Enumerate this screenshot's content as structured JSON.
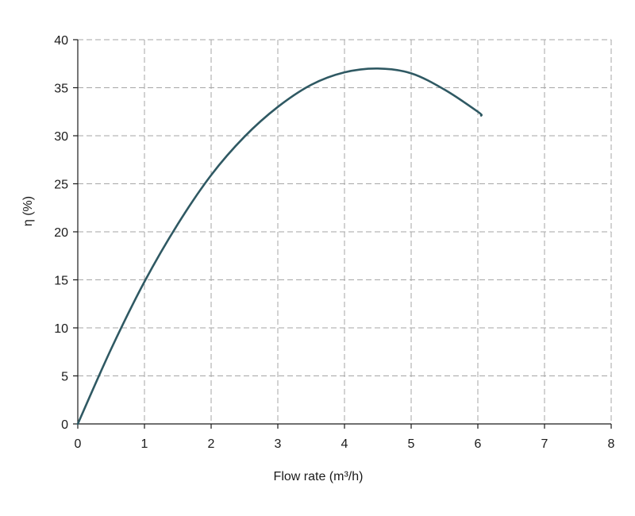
{
  "chart_data": {
    "type": "line",
    "title": "",
    "xlabel": "Flow rate (m³/h)",
    "ylabel": "η (%)",
    "xlim": [
      0,
      8
    ],
    "ylim": [
      0,
      40
    ],
    "x_ticks": [
      0,
      1,
      2,
      3,
      4,
      5,
      6,
      7,
      8
    ],
    "y_ticks": [
      0,
      5,
      10,
      15,
      20,
      25,
      30,
      35,
      40
    ],
    "x_tick_labels": [
      "0",
      "1",
      "2",
      "3",
      "4",
      "5",
      "6",
      "7",
      "8"
    ],
    "y_tick_labels": [
      "0",
      "5",
      "10",
      "15",
      "20",
      "25",
      "30",
      "35",
      "40"
    ],
    "grid": true,
    "series": [
      {
        "color": "#2f5963",
        "x": [
          0,
          0.5,
          1,
          1.5,
          2,
          2.5,
          3,
          3.5,
          4,
          4.5,
          5,
          5.5,
          6,
          6.05
        ],
        "y": [
          0,
          7.8,
          14.8,
          20.8,
          25.9,
          29.9,
          33.0,
          35.3,
          36.6,
          37.0,
          36.5,
          34.8,
          32.5,
          32.1
        ]
      }
    ]
  }
}
